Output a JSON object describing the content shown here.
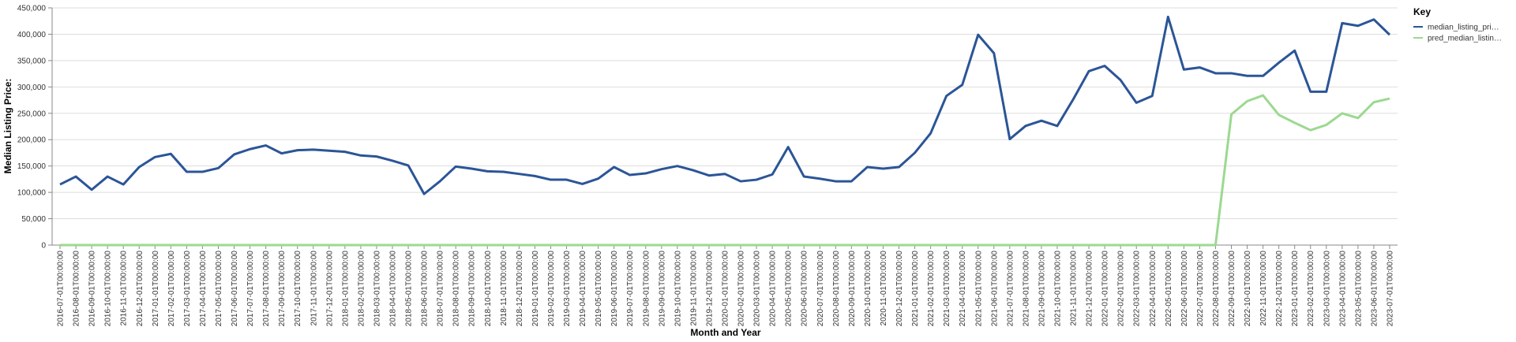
{
  "chart_data": {
    "type": "line",
    "x_label": "Month and Year",
    "y_label": "Median Listing Price:",
    "legend_title": "Key",
    "legend_position": "right",
    "grid": true,
    "categories": [
      "2016-07-01T00:00:00",
      "2016-08-01T00:00:00",
      "2016-09-01T00:00:00",
      "2016-10-01T00:00:00",
      "2016-11-01T00:00:00",
      "2016-12-01T00:00:00",
      "2017-01-01T00:00:00",
      "2017-02-01T00:00:00",
      "2017-03-01T00:00:00",
      "2017-04-01T00:00:00",
      "2017-05-01T00:00:00",
      "2017-06-01T00:00:00",
      "2017-07-01T00:00:00",
      "2017-08-01T00:00:00",
      "2017-09-01T00:00:00",
      "2017-10-01T00:00:00",
      "2017-11-01T00:00:00",
      "2017-12-01T00:00:00",
      "2018-01-01T00:00:00",
      "2018-02-01T00:00:00",
      "2018-03-01T00:00:00",
      "2018-04-01T00:00:00",
      "2018-05-01T00:00:00",
      "2018-06-01T00:00:00",
      "2018-07-01T00:00:00",
      "2018-08-01T00:00:00",
      "2018-09-01T00:00:00",
      "2018-10-01T00:00:00",
      "2018-11-01T00:00:00",
      "2018-12-01T00:00:00",
      "2019-01-01T00:00:00",
      "2019-02-01T00:00:00",
      "2019-03-01T00:00:00",
      "2019-04-01T00:00:00",
      "2019-05-01T00:00:00",
      "2019-06-01T00:00:00",
      "2019-07-01T00:00:00",
      "2019-08-01T00:00:00",
      "2019-09-01T00:00:00",
      "2019-10-01T00:00:00",
      "2019-11-01T00:00:00",
      "2019-12-01T00:00:00",
      "2020-01-01T00:00:00",
      "2020-02-01T00:00:00",
      "2020-03-01T00:00:00",
      "2020-04-01T00:00:00",
      "2020-05-01T00:00:00",
      "2020-06-01T00:00:00",
      "2020-07-01T00:00:00",
      "2020-08-01T00:00:00",
      "2020-09-01T00:00:00",
      "2020-10-01T00:00:00",
      "2020-11-01T00:00:00",
      "2020-12-01T00:00:00",
      "2021-01-01T00:00:00",
      "2021-02-01T00:00:00",
      "2021-03-01T00:00:00",
      "2021-04-01T00:00:00",
      "2021-05-01T00:00:00",
      "2021-06-01T00:00:00",
      "2021-07-01T00:00:00",
      "2021-08-01T00:00:00",
      "2021-09-01T00:00:00",
      "2021-10-01T00:00:00",
      "2021-11-01T00:00:00",
      "2021-12-01T00:00:00",
      "2022-01-01T00:00:00",
      "2022-02-01T00:00:00",
      "2022-03-01T00:00:00",
      "2022-04-01T00:00:00",
      "2022-05-01T00:00:00",
      "2022-06-01T00:00:00",
      "2022-07-01T00:00:00",
      "2022-08-01T00:00:00",
      "2022-09-01T00:00:00",
      "2022-10-01T00:00:00",
      "2022-11-01T00:00:00",
      "2022-12-01T00:00:00",
      "2023-01-01T00:00:00",
      "2023-02-01T00:00:00",
      "2023-03-01T00:00:00",
      "2023-04-01T00:00:00",
      "2023-05-01T00:00:00",
      "2023-06-01T00:00:00",
      "2023-07-01T00:00:00"
    ],
    "series": [
      {
        "name": "median_listing_pri…",
        "color": "#2b5597",
        "values": [
          115000,
          130000,
          105000,
          130000,
          115000,
          148000,
          167000,
          173000,
          139000,
          139000,
          146000,
          172000,
          182000,
          189000,
          174000,
          180000,
          181000,
          179000,
          177000,
          170000,
          168000,
          160000,
          151000,
          97000,
          121000,
          149000,
          145000,
          140000,
          139000,
          135000,
          131000,
          124000,
          124000,
          116000,
          126000,
          148000,
          133000,
          136000,
          144000,
          150000,
          142000,
          132000,
          135000,
          121000,
          124000,
          134000,
          186000,
          130000,
          126000,
          121000,
          121000,
          148000,
          145000,
          148000,
          175000,
          212000,
          283000,
          304000,
          399000,
          364000,
          201000,
          226000,
          236000,
          226000,
          276000,
          330000,
          340000,
          313000,
          270000,
          283000,
          433000,
          333000,
          337000,
          326000,
          326000,
          321000,
          321000,
          346000,
          369000,
          291000,
          291000,
          421000,
          416000,
          428000,
          399000
        ]
      },
      {
        "name": "pred_median_listin…",
        "color": "#9bd98f",
        "values": [
          0,
          0,
          0,
          0,
          0,
          0,
          0,
          0,
          0,
          0,
          0,
          0,
          0,
          0,
          0,
          0,
          0,
          0,
          0,
          0,
          0,
          0,
          0,
          0,
          0,
          0,
          0,
          0,
          0,
          0,
          0,
          0,
          0,
          0,
          0,
          0,
          0,
          0,
          0,
          0,
          0,
          0,
          0,
          0,
          0,
          0,
          0,
          0,
          0,
          0,
          0,
          0,
          0,
          0,
          0,
          0,
          0,
          0,
          0,
          0,
          0,
          0,
          0,
          0,
          0,
          0,
          0,
          0,
          0,
          0,
          0,
          0,
          0,
          0,
          248000,
          273000,
          284000,
          247000,
          232000,
          218000,
          228000,
          250000,
          241000,
          271000,
          278000
        ]
      }
    ],
    "ylim": [
      0,
      450000
    ],
    "yticks": [
      0,
      {
        "value": 50000,
        "label": "50,000"
      },
      {
        "value": 100000,
        "label": "100,000"
      },
      {
        "value": 150000,
        "label": "150,000"
      },
      {
        "value": 200000,
        "label": "200,000"
      },
      {
        "value": 250000,
        "label": "250,000"
      },
      {
        "value": 300000,
        "label": "300,000"
      },
      {
        "value": 350000,
        "label": "350,000"
      },
      {
        "value": 400000,
        "label": "400,000"
      },
      {
        "value": 450000,
        "label": "450,000"
      }
    ]
  }
}
